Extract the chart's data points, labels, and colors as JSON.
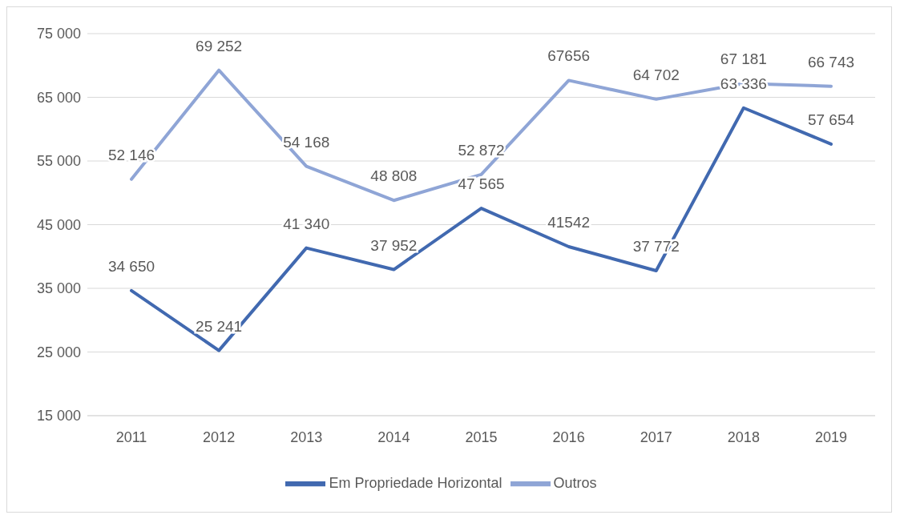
{
  "chart_data": {
    "type": "line",
    "categories": [
      "2011",
      "2012",
      "2013",
      "2014",
      "2015",
      "2016",
      "2017",
      "2018",
      "2019"
    ],
    "series": [
      {
        "name": "Em Propriedade Horizontal",
        "color": "#4169b0",
        "values": [
          34650,
          25241,
          41340,
          37952,
          47565,
          41542,
          37772,
          63336,
          57654
        ],
        "value_labels": [
          "34 650",
          "25 241",
          "41 340",
          "37 952",
          "47 565",
          "41542",
          "37 772",
          "63 336",
          "57 654"
        ]
      },
      {
        "name": "Outros",
        "color": "#8fa5d6",
        "values": [
          52146,
          69252,
          54168,
          48808,
          52872,
          67656,
          64702,
          67181,
          66743
        ],
        "value_labels": [
          "52 146",
          "69 252",
          "54 168",
          "48 808",
          "52 872",
          "67656",
          "64 702",
          "67 181",
          "66 743"
        ]
      }
    ],
    "ylim": [
      15000,
      75000
    ],
    "yticks": [
      {
        "value": 15000,
        "label": "15 000"
      },
      {
        "value": 25000,
        "label": "25 000"
      },
      {
        "value": 35000,
        "label": "35 000"
      },
      {
        "value": 45000,
        "label": "45 000"
      },
      {
        "value": 55000,
        "label": "55 000"
      },
      {
        "value": 65000,
        "label": "65 000"
      },
      {
        "value": 75000,
        "label": "75 000"
      }
    ],
    "grid": "y",
    "legend": "bottom",
    "marker": "none",
    "line_style": "solid"
  }
}
